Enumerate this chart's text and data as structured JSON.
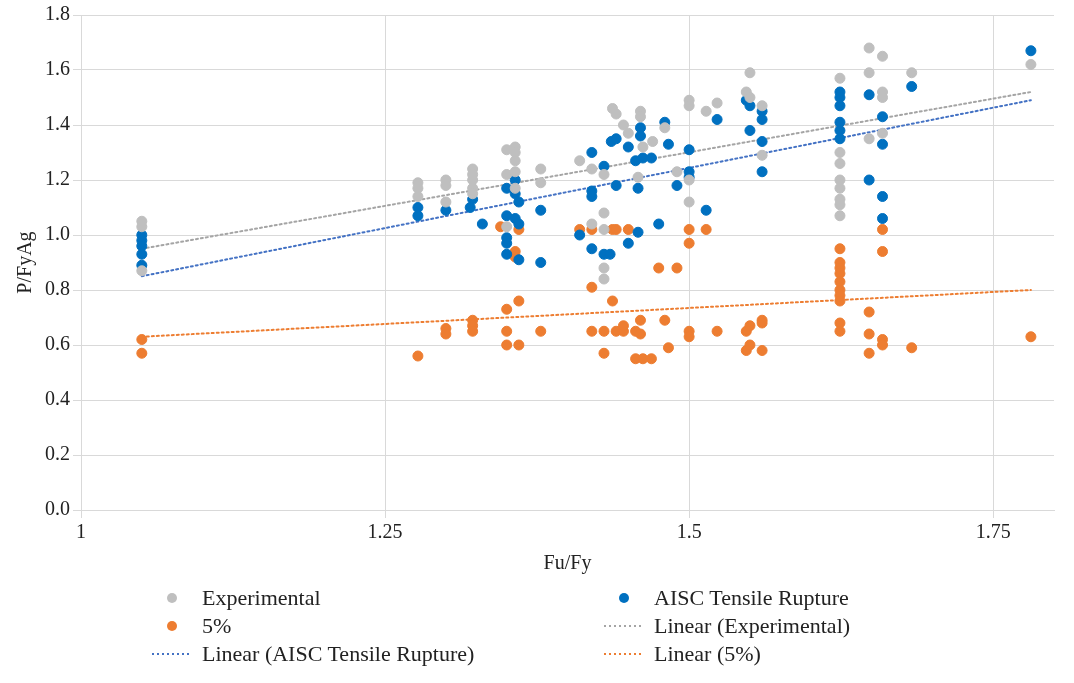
{
  "chart_data": {
    "type": "scatter",
    "xlabel": "Fu/Fy",
    "ylabel": "P/FyAg",
    "marker": "circle",
    "grid": true,
    "legend": "bottom",
    "xlim": [
      1,
      1.8
    ],
    "xticks": [
      1,
      1.25,
      1.5,
      1.75
    ],
    "ylim": [
      0,
      1.8
    ],
    "yticks": [
      {
        "value": 0,
        "label": "0.0"
      },
      0.2,
      0.4,
      0.6,
      0.8,
      {
        "value": 1,
        "label": "1.0"
      },
      1.2,
      1.4,
      1.6,
      1.8
    ],
    "series": [
      {
        "name": "Experimental",
        "color": "#bfbfbf",
        "x": [
          1.05,
          1.05,
          1.05,
          1.277,
          1.277,
          1.277,
          1.3,
          1.3,
          1.3,
          1.322,
          1.322,
          1.322,
          1.322,
          1.322,
          1.35,
          1.35,
          1.35,
          1.357,
          1.357,
          1.357,
          1.357,
          1.357,
          1.378,
          1.378,
          1.41,
          1.42,
          1.42,
          1.43,
          1.43,
          1.43,
          1.43,
          1.43,
          1.437,
          1.44,
          1.446,
          1.45,
          1.46,
          1.46,
          1.47,
          1.462,
          1.458,
          1.48,
          1.49,
          1.5,
          1.5,
          1.5,
          1.5,
          1.514,
          1.523,
          1.55,
          1.547,
          1.55,
          1.56,
          1.56,
          1.624,
          1.624,
          1.624,
          1.624,
          1.624,
          1.624,
          1.624,
          1.624,
          1.648,
          1.648,
          1.648,
          1.659,
          1.659,
          1.659,
          1.659,
          1.683,
          1.781
        ],
        "values": [
          1.05,
          1.03,
          0.87,
          1.19,
          1.17,
          1.14,
          1.2,
          1.18,
          1.12,
          1.24,
          1.22,
          1.2,
          1.17,
          1.15,
          1.31,
          1.22,
          1.03,
          1.32,
          1.3,
          1.27,
          1.23,
          1.17,
          1.24,
          1.19,
          1.27,
          1.24,
          1.04,
          1.22,
          1.08,
          1.02,
          0.88,
          0.84,
          1.46,
          1.44,
          1.4,
          1.37,
          1.45,
          1.43,
          1.34,
          1.32,
          1.21,
          1.39,
          1.23,
          1.12,
          1.2,
          1.49,
          1.47,
          1.45,
          1.48,
          1.59,
          1.52,
          1.5,
          1.47,
          1.29,
          1.57,
          1.3,
          1.26,
          1.2,
          1.17,
          1.13,
          1.11,
          1.07,
          1.68,
          1.59,
          1.35,
          1.65,
          1.52,
          1.5,
          1.37,
          1.59,
          1.62
        ]
      },
      {
        "name": "AISC Tensile Rupture",
        "color": "#0070c0",
        "x": [
          1.05,
          1.05,
          1.05,
          1.05,
          1.05,
          1.277,
          1.277,
          1.3,
          1.322,
          1.32,
          1.33,
          1.357,
          1.35,
          1.357,
          1.36,
          1.35,
          1.357,
          1.36,
          1.35,
          1.35,
          1.35,
          1.36,
          1.378,
          1.378,
          1.42,
          1.43,
          1.42,
          1.42,
          1.44,
          1.458,
          1.436,
          1.44,
          1.45,
          1.46,
          1.46,
          1.456,
          1.462,
          1.469,
          1.48,
          1.483,
          1.5,
          1.5,
          1.5,
          1.49,
          1.514,
          1.523,
          1.41,
          1.42,
          1.43,
          1.435,
          1.45,
          1.458,
          1.475,
          1.547,
          1.55,
          1.56,
          1.56,
          1.55,
          1.56,
          1.56,
          1.624,
          1.624,
          1.624,
          1.624,
          1.624,
          1.624,
          1.648,
          1.648,
          1.659,
          1.659,
          1.659,
          1.659,
          1.683,
          1.781
        ],
        "values": [
          1.0,
          0.98,
          0.96,
          0.93,
          0.89,
          1.1,
          1.07,
          1.09,
          1.13,
          1.1,
          1.04,
          1.2,
          1.17,
          1.15,
          1.12,
          1.07,
          1.06,
          1.04,
          0.99,
          0.97,
          0.93,
          0.91,
          1.09,
          0.9,
          1.3,
          1.25,
          1.16,
          1.14,
          1.18,
          1.17,
          1.34,
          1.35,
          1.32,
          1.39,
          1.36,
          1.27,
          1.28,
          1.28,
          1.41,
          1.33,
          1.31,
          1.23,
          1.21,
          1.18,
          1.09,
          1.42,
          1.0,
          0.95,
          0.93,
          0.93,
          0.97,
          1.01,
          1.04,
          1.49,
          1.47,
          1.45,
          1.42,
          1.38,
          1.34,
          1.23,
          1.52,
          1.5,
          1.47,
          1.41,
          1.38,
          1.35,
          1.51,
          1.2,
          1.43,
          1.33,
          1.14,
          1.06,
          1.54,
          1.67
        ]
      },
      {
        "name": "5%",
        "color": "#ed7d31",
        "x": [
          1.05,
          1.05,
          1.277,
          1.3,
          1.3,
          1.322,
          1.322,
          1.322,
          1.35,
          1.36,
          1.35,
          1.35,
          1.36,
          1.378,
          1.345,
          1.36,
          1.357,
          1.357,
          1.41,
          1.42,
          1.437,
          1.44,
          1.45,
          1.42,
          1.437,
          1.475,
          1.49,
          1.5,
          1.5,
          1.514,
          1.624,
          1.624,
          1.624,
          1.624,
          1.624,
          1.624,
          1.624,
          1.624,
          1.648,
          1.659,
          1.659,
          1.42,
          1.43,
          1.44,
          1.446,
          1.446,
          1.43,
          1.456,
          1.46,
          1.46,
          1.456,
          1.462,
          1.469,
          1.48,
          1.483,
          1.5,
          1.5,
          1.523,
          1.547,
          1.55,
          1.56,
          1.56,
          1.547,
          1.55,
          1.56,
          1.624,
          1.624,
          1.648,
          1.648,
          1.659,
          1.659,
          1.683,
          1.781
        ],
        "values": [
          0.62,
          0.57,
          0.56,
          0.66,
          0.64,
          0.69,
          0.67,
          0.65,
          0.73,
          0.76,
          0.65,
          0.6,
          0.6,
          0.65,
          1.03,
          1.02,
          0.94,
          0.92,
          1.02,
          1.02,
          1.02,
          1.02,
          1.02,
          0.81,
          0.76,
          0.88,
          0.88,
          1.02,
          0.97,
          1.02,
          0.95,
          0.9,
          0.88,
          0.86,
          0.83,
          0.8,
          0.78,
          0.76,
          0.72,
          1.02,
          0.94,
          0.65,
          0.65,
          0.65,
          0.65,
          0.67,
          0.57,
          0.65,
          0.64,
          0.69,
          0.55,
          0.55,
          0.55,
          0.69,
          0.59,
          0.65,
          0.63,
          0.65,
          0.65,
          0.67,
          0.69,
          0.68,
          0.58,
          0.6,
          0.58,
          0.68,
          0.65,
          0.64,
          0.57,
          0.62,
          0.6,
          0.59,
          0.63
        ]
      },
      {
        "name": "Linear (Experimental)",
        "color": "#a5a5a5",
        "type": "line",
        "marker": "none",
        "line_style": "dotted",
        "x": [
          1.05,
          1.781
        ],
        "values": [
          0.95,
          1.52
        ]
      },
      {
        "name": "Linear (AISC Tensile Rupture)",
        "color": "#4472c4",
        "type": "line",
        "marker": "none",
        "line_style": "dotted",
        "x": [
          1.05,
          1.781
        ],
        "values": [
          0.85,
          1.49
        ]
      },
      {
        "name": "Linear (5%)",
        "color": "#ed7d31",
        "type": "line",
        "marker": "none",
        "line_style": "dotted",
        "x": [
          1.05,
          1.781
        ],
        "values": [
          0.63,
          0.8
        ]
      }
    ]
  }
}
